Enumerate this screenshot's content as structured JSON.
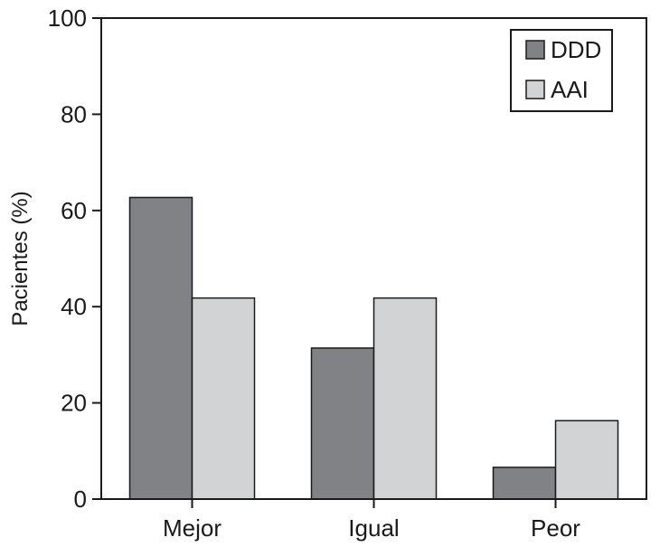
{
  "chart_data": {
    "type": "bar",
    "categories": [
      "Mejor",
      "Igual",
      "Peor"
    ],
    "series": [
      {
        "name": "DDD",
        "values": [
          62.7,
          31.4,
          6.6
        ],
        "color": "#808285"
      },
      {
        "name": "AAI",
        "values": [
          41.8,
          41.8,
          16.3
        ],
        "color": "#d1d3d4"
      }
    ],
    "xlabel": "",
    "ylabel": "Pacientes (%)",
    "ylim": [
      0,
      100
    ],
    "yticks": [
      0,
      20,
      40,
      60,
      80,
      100
    ],
    "grid": false,
    "legend_position": "top-right"
  }
}
